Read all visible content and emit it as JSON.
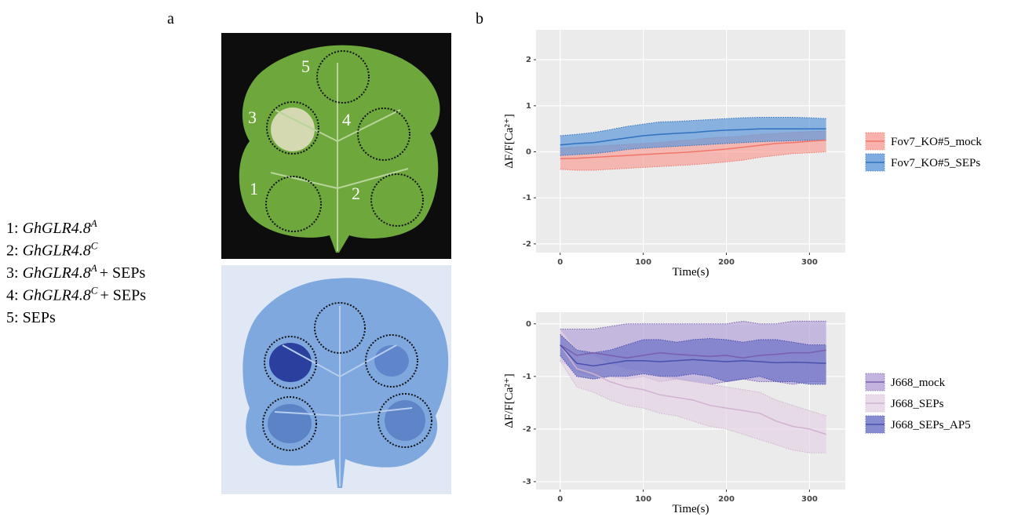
{
  "panel_a": {
    "label": "a",
    "legend": [
      {
        "number": "1:",
        "gene": "GhGLR4.8",
        "superscript": "A"
      },
      {
        "number": "2:",
        "gene": "GhGLR4.8",
        "superscript": "C"
      },
      {
        "number": "3:",
        "gene": "GhGLR4.8",
        "superscript": "A",
        "suffix": "+ SEPs"
      },
      {
        "number": "4:",
        "gene": "GhGLR4.8",
        "superscript": "C",
        "suffix": "+ SEPs"
      },
      {
        "number": "5:",
        "suffix": "SEPs"
      }
    ],
    "spot_labels": [
      "1",
      "2",
      "3",
      "4",
      "5"
    ]
  },
  "panel_b": {
    "label": "b"
  },
  "chart_data": [
    {
      "type": "line",
      "y_label": "ΔF/F[Ca²⁺]",
      "x_label": "Time(s)",
      "grid": true,
      "x": [
        0,
        20,
        40,
        60,
        80,
        100,
        120,
        140,
        160,
        180,
        200,
        220,
        240,
        260,
        280,
        300,
        320
      ],
      "xlim": [
        -29,
        343
      ],
      "xticks": [
        0,
        100,
        200,
        300
      ],
      "ylim": [
        -2.19,
        2.65
      ],
      "yticks": [
        -2,
        -1,
        0,
        1,
        2
      ],
      "series": [
        {
          "name": "Fov7_KO#5_mock",
          "color": "#f0766b",
          "fill": "#f7a097",
          "values": [
            -0.15,
            -0.14,
            -0.12,
            -0.1,
            -0.08,
            -0.06,
            -0.04,
            -0.02,
            0.0,
            0.03,
            0.06,
            0.1,
            0.14,
            0.18,
            0.2,
            0.23,
            0.25
          ],
          "lower": [
            -0.38,
            -0.4,
            -0.4,
            -0.38,
            -0.36,
            -0.34,
            -0.32,
            -0.3,
            -0.28,
            -0.25,
            -0.22,
            -0.18,
            -0.12,
            -0.08,
            -0.04,
            -0.02,
            0.0
          ],
          "upper": [
            0.08,
            0.1,
            0.12,
            0.14,
            0.16,
            0.18,
            0.2,
            0.24,
            0.26,
            0.3,
            0.32,
            0.34,
            0.38,
            0.4,
            0.42,
            0.44,
            0.45
          ]
        },
        {
          "name": "Fov7_KO#5_SEPs",
          "color": "#2f72c0",
          "fill": "#5f98da",
          "values": [
            0.15,
            0.18,
            0.2,
            0.25,
            0.3,
            0.35,
            0.38,
            0.4,
            0.42,
            0.45,
            0.47,
            0.48,
            0.5,
            0.5,
            0.5,
            0.5,
            0.5
          ],
          "lower": [
            -0.08,
            -0.06,
            -0.04,
            0,
            0.05,
            0.08,
            0.1,
            0.12,
            0.14,
            0.16,
            0.18,
            0.2,
            0.22,
            0.23,
            0.24,
            0.25,
            0.25
          ],
          "upper": [
            0.35,
            0.38,
            0.42,
            0.48,
            0.55,
            0.6,
            0.65,
            0.66,
            0.68,
            0.7,
            0.72,
            0.74,
            0.75,
            0.75,
            0.75,
            0.74,
            0.72
          ]
        }
      ]
    },
    {
      "type": "line",
      "y_label": "ΔF/F[Ca²⁺]",
      "x_label": "Time(s)",
      "grid": true,
      "x": [
        0,
        20,
        40,
        60,
        80,
        100,
        120,
        140,
        160,
        180,
        200,
        220,
        240,
        260,
        280,
        300,
        320
      ],
      "xlim": [
        -29,
        343
      ],
      "xticks": [
        0,
        100,
        200,
        300
      ],
      "ylim": [
        -3.15,
        0.22
      ],
      "yticks": [
        -3,
        -2,
        -1,
        0
      ],
      "series": [
        {
          "name": "J668_mock",
          "color": "#7a5fad",
          "fill": "#b5a2d8",
          "values": [
            -0.4,
            -0.6,
            -0.55,
            -0.6,
            -0.65,
            -0.6,
            -0.55,
            -0.58,
            -0.6,
            -0.62,
            -0.6,
            -0.65,
            -0.6,
            -0.58,
            -0.55,
            -0.55,
            -0.5
          ],
          "lower": [
            -0.7,
            -0.9,
            -1.0,
            -1.0,
            -1.05,
            -1.0,
            -1.1,
            -1.05,
            -1.1,
            -1.15,
            -1.1,
            -1.05,
            -1.1,
            -1.1,
            -1.15,
            -1.1,
            -1.1
          ],
          "upper": [
            -0.1,
            -0.1,
            -0.1,
            -0.05,
            0,
            0,
            0,
            0,
            0,
            0,
            0,
            0.05,
            0,
            0,
            0.05,
            0.05,
            0.05
          ]
        },
        {
          "name": "J668_SEPs",
          "color": "#cfb2cf",
          "fill": "#e6d3e6",
          "values": [
            -0.4,
            -0.85,
            -0.95,
            -1.1,
            -1.2,
            -1.25,
            -1.35,
            -1.4,
            -1.45,
            -1.55,
            -1.6,
            -1.65,
            -1.7,
            -1.85,
            -1.95,
            -2.0,
            -2.1
          ],
          "lower": [
            -0.7,
            -1.2,
            -1.3,
            -1.45,
            -1.55,
            -1.6,
            -1.7,
            -1.75,
            -1.85,
            -1.95,
            -2.0,
            -2.1,
            -2.2,
            -2.3,
            -2.4,
            -2.45,
            -2.45
          ],
          "upper": [
            -0.1,
            -0.5,
            -0.6,
            -0.75,
            -0.85,
            -0.9,
            -1.0,
            -1.05,
            -1.1,
            -1.15,
            -1.2,
            -1.25,
            -1.3,
            -1.45,
            -1.55,
            -1.65,
            -1.75
          ]
        },
        {
          "name": "J668_SEPs_AP5",
          "color": "#4a4fae",
          "fill": "#6a70c6",
          "values": [
            -0.4,
            -0.75,
            -0.8,
            -0.75,
            -0.7,
            -0.7,
            -0.72,
            -0.7,
            -0.68,
            -0.7,
            -0.72,
            -0.7,
            -0.72,
            -0.74,
            -0.73,
            -0.74,
            -0.75
          ],
          "lower": [
            -0.6,
            -1.0,
            -1.05,
            -1.0,
            -1.0,
            -0.95,
            -1.0,
            -1.0,
            -0.95,
            -1.0,
            -1.1,
            -1.05,
            -1.0,
            -1.1,
            -1.1,
            -1.15,
            -1.15
          ],
          "upper": [
            -0.2,
            -0.5,
            -0.55,
            -0.5,
            -0.4,
            -0.3,
            -0.3,
            -0.35,
            -0.3,
            -0.28,
            -0.3,
            -0.35,
            -0.3,
            -0.3,
            -0.35,
            -0.4,
            -0.4
          ]
        }
      ]
    }
  ]
}
